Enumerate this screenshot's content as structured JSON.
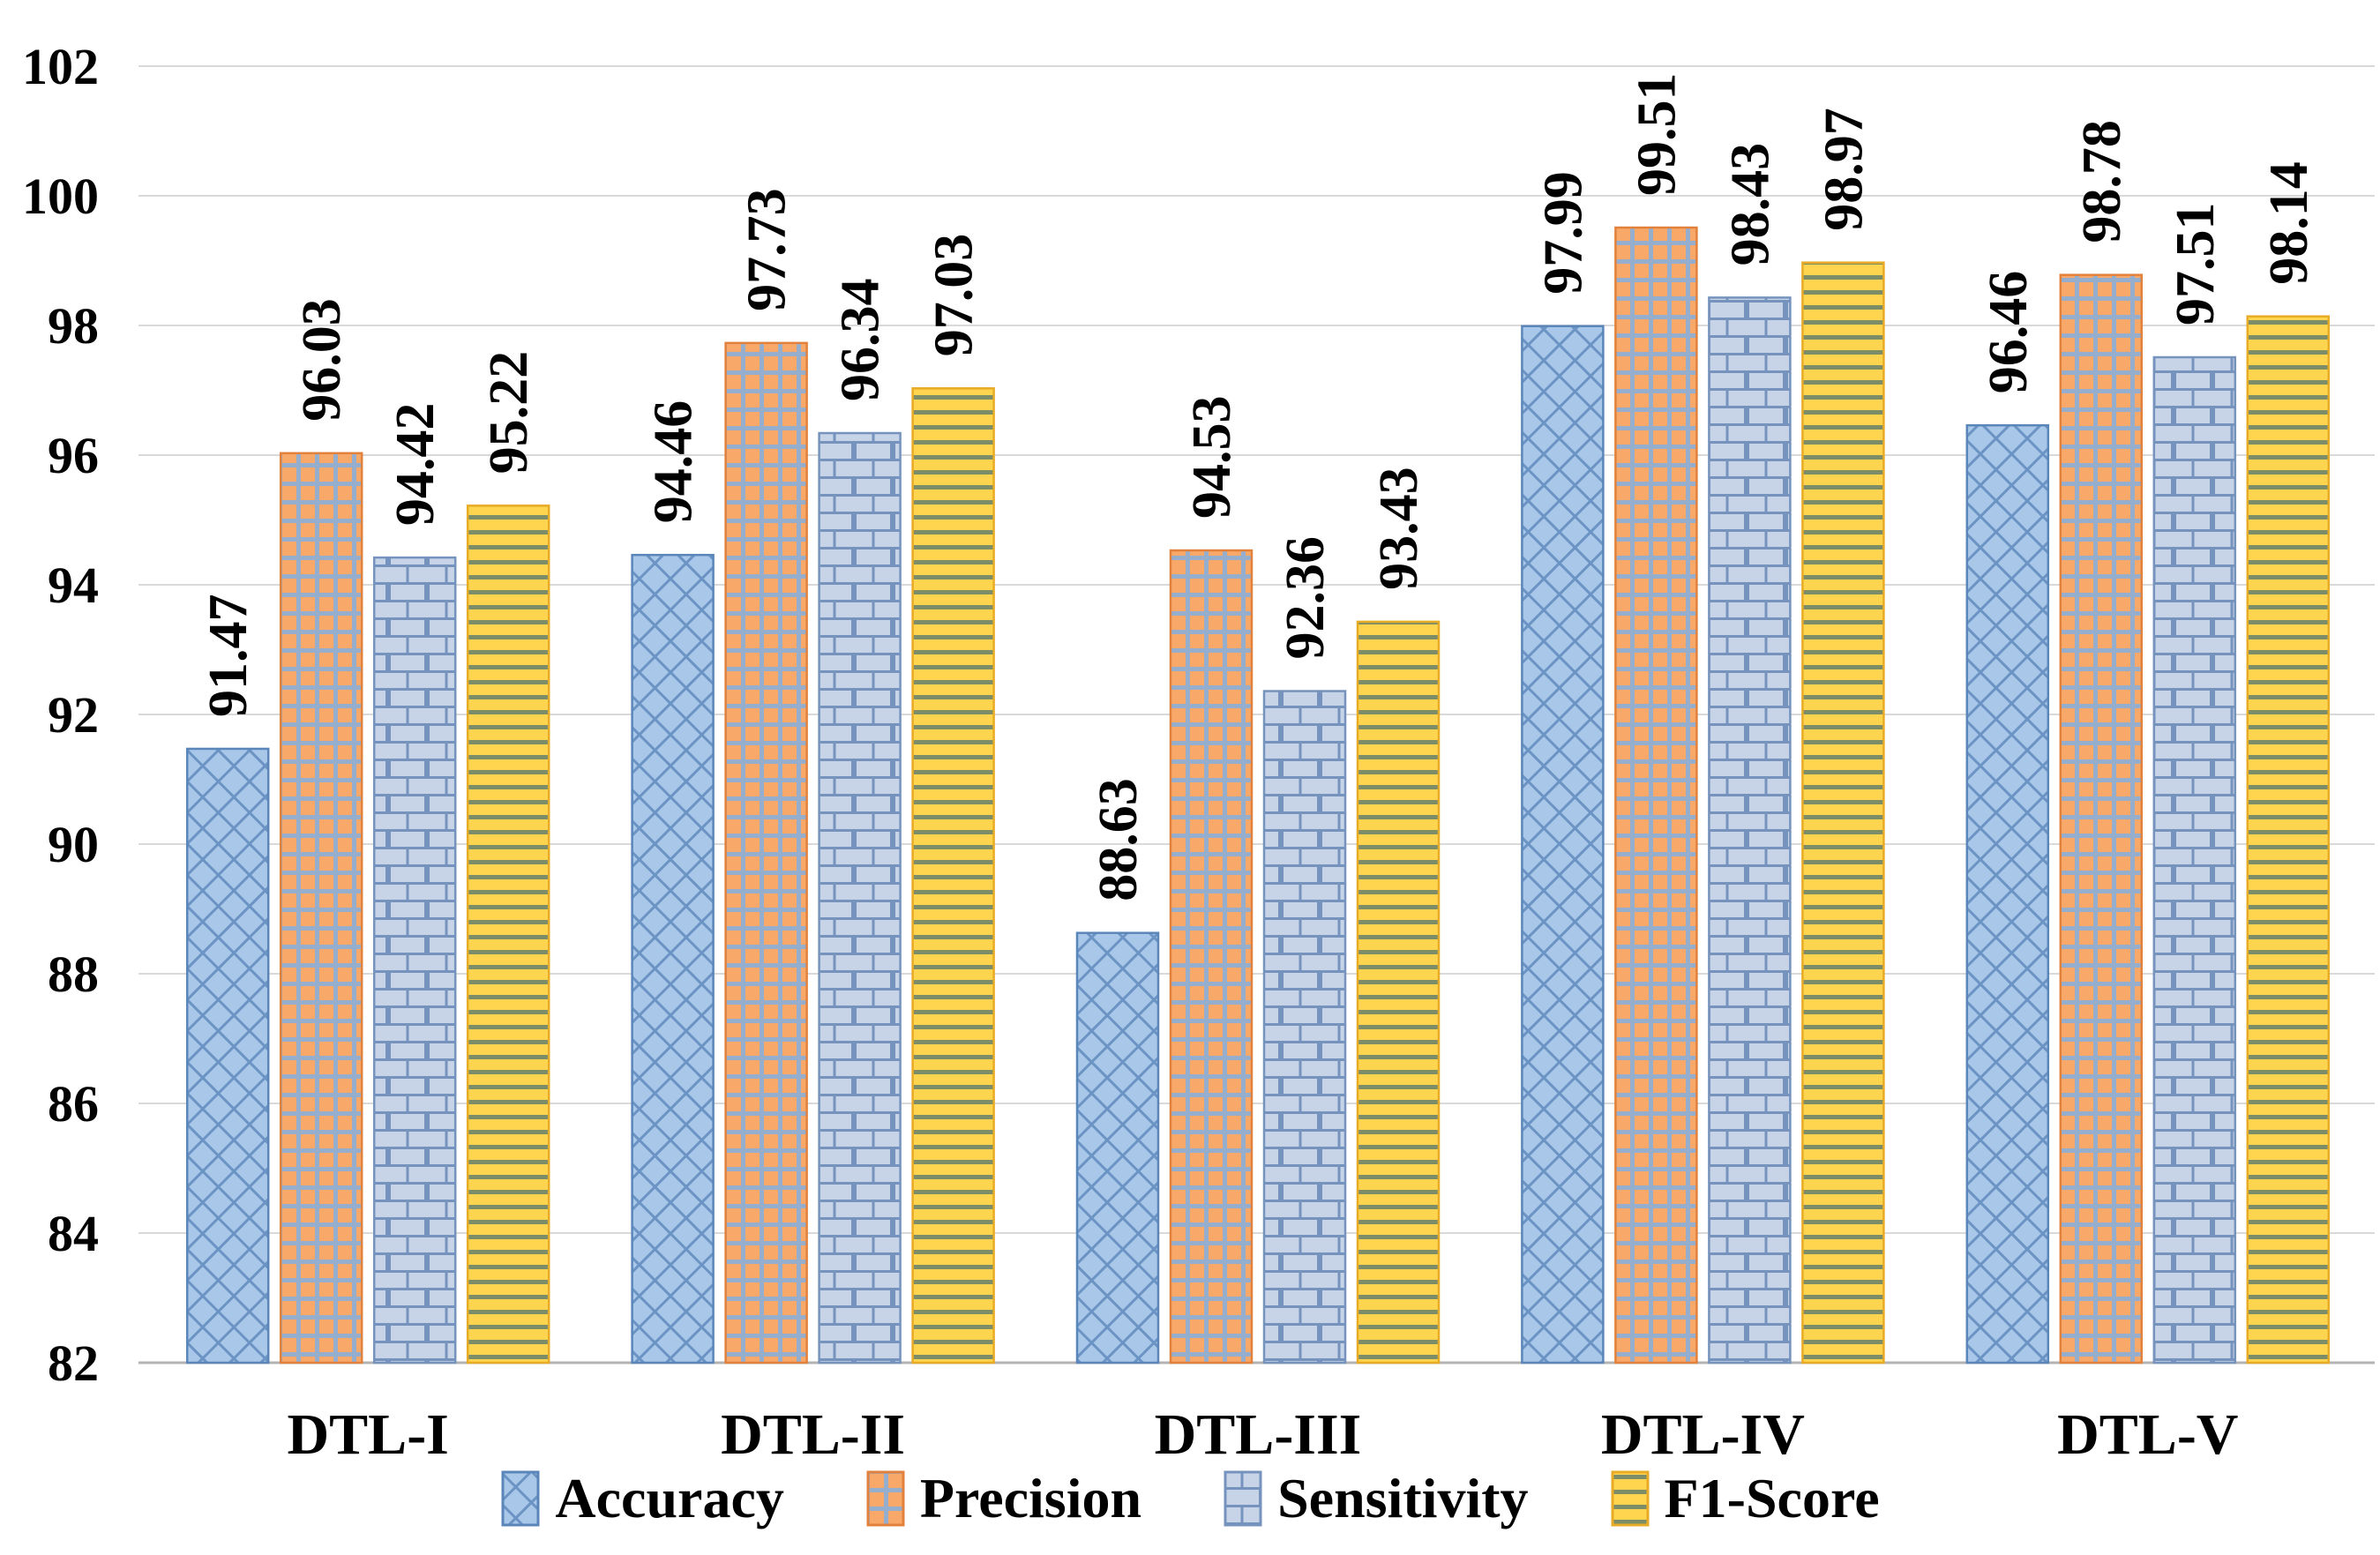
{
  "chart_data": {
    "type": "bar",
    "categories": [
      "DTL-I",
      "DTL-II",
      "DTL-III",
      "DTL-IV",
      "DTL-V"
    ],
    "series": [
      {
        "name": "Accuracy",
        "values": [
          91.47,
          94.46,
          88.63,
          97.99,
          96.46
        ],
        "fill": "#a9c7e8",
        "pattern": "crosshatch",
        "pattern_color": "#6b94c4",
        "border": "#5b86ba"
      },
      {
        "name": "Precision",
        "values": [
          96.03,
          97.73,
          94.53,
          99.51,
          98.78
        ],
        "fill": "#f8a96a",
        "pattern": "grid",
        "pattern_color": "#96aecd",
        "border": "#e2813b"
      },
      {
        "name": "Sensitivity",
        "values": [
          94.42,
          96.34,
          92.36,
          98.43,
          97.51
        ],
        "fill": "#c7d4e8",
        "pattern": "brick",
        "pattern_color": "#7593bd",
        "border": "#7593bd"
      },
      {
        "name": "F1-Score",
        "values": [
          95.22,
          97.03,
          93.43,
          98.97,
          98.14
        ],
        "fill": "#ffd44f",
        "pattern": "hstripe",
        "pattern_color": "#7d8d67",
        "border": "#e8ab25"
      }
    ],
    "ylim": [
      82,
      102
    ],
    "ytick_step": 2,
    "ytick_labels": [
      "82",
      "84",
      "86",
      "88",
      "90",
      "92",
      "94",
      "96",
      "98",
      "100",
      "102"
    ],
    "grid": true,
    "legend_position": "bottom",
    "value_labels": "rotated-90-above-bars",
    "gridline_color": "#d9d9d9",
    "axis_line_color": "#b3b3b3",
    "text_color": "#000000",
    "background": "#ffffff"
  }
}
